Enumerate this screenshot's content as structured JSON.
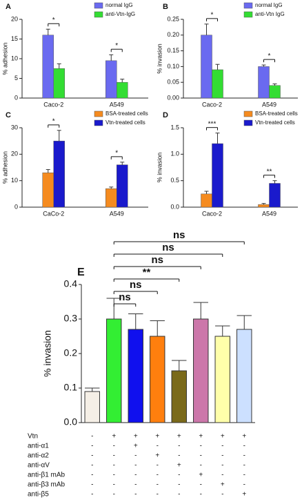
{
  "chart_data": [
    {
      "type": "bar",
      "panel": "A",
      "ylabel": "% adhesion",
      "categories": [
        "Caco-2",
        "A549"
      ],
      "series": [
        {
          "name": "normal IgG",
          "color": "#6a6af0",
          "values": [
            16,
            9.5
          ],
          "errors": [
            1.5,
            1.5
          ]
        },
        {
          "name": "anti-Vtn-IgG",
          "color": "#33dd33",
          "values": [
            7.5,
            4
          ],
          "errors": [
            1.2,
            0.8
          ]
        }
      ],
      "significance": [
        "*",
        "*"
      ],
      "ylim": [
        0,
        20
      ],
      "yticks": [
        0,
        5,
        10,
        15,
        20
      ],
      "legend": "upper right"
    },
    {
      "type": "bar",
      "panel": "B",
      "ylabel": "% invasion",
      "categories": [
        "Caco-2",
        "A549"
      ],
      "series": [
        {
          "name": "normal IgG",
          "color": "#6a6af0",
          "values": [
            0.2,
            0.1
          ],
          "errors": [
            0.035,
            0.005
          ]
        },
        {
          "name": "anti-Vtn IgG",
          "color": "#33dd33",
          "values": [
            0.09,
            0.04
          ],
          "errors": [
            0.017,
            0.005
          ]
        }
      ],
      "significance": [
        "*",
        "*"
      ],
      "ylim": [
        0,
        0.25
      ],
      "yticks": [
        {
          "value": 0,
          "label": "0.00"
        },
        {
          "value": 0.05,
          "label": "0.05"
        },
        {
          "value": 0.1,
          "label": "0.10"
        },
        {
          "value": 0.15,
          "label": "0.15"
        },
        {
          "value": 0.2,
          "label": "0.20"
        },
        {
          "value": 0.25,
          "label": "0.25"
        }
      ],
      "legend": "upper right"
    },
    {
      "type": "bar",
      "panel": "C",
      "ylabel": "% adhesion",
      "categories": [
        "CaCo-2",
        "A549"
      ],
      "series": [
        {
          "name": "BSA-treated cells",
          "color": "#f58b1f",
          "values": [
            13,
            7
          ],
          "errors": [
            1.2,
            0.6
          ]
        },
        {
          "name": "Vtn-treated cells",
          "color": "#1a1acc",
          "values": [
            25,
            16
          ],
          "errors": [
            4,
            1
          ]
        }
      ],
      "significance": [
        "*",
        "*"
      ],
      "ylim": [
        0,
        30
      ],
      "yticks": [
        0,
        10,
        20,
        30
      ],
      "legend": "upper right"
    },
    {
      "type": "bar",
      "panel": "D",
      "ylabel": "% invasion",
      "categories": [
        "Caco-2",
        "A549"
      ],
      "series": [
        {
          "name": "BSA-treated cells",
          "color": "#f58b1f",
          "values": [
            0.25,
            0.05
          ],
          "errors": [
            0.05,
            0.02
          ]
        },
        {
          "name": "Vtn-treated cells",
          "color": "#1a1acc",
          "values": [
            1.2,
            0.45
          ],
          "errors": [
            0.2,
            0.05
          ]
        }
      ],
      "significance": [
        "***",
        "**"
      ],
      "ylim": [
        0,
        1.5
      ],
      "yticks": [
        {
          "value": 0,
          "label": "0.0"
        },
        {
          "value": 0.5,
          "label": "0.5"
        },
        {
          "value": 1,
          "label": "1.0"
        },
        {
          "value": 1.5,
          "label": "1.5"
        }
      ],
      "legend": "upper right"
    },
    {
      "type": "bar",
      "panel": "E",
      "ylabel": "% invasion",
      "values": [
        0.09,
        0.3,
        0.27,
        0.25,
        0.15,
        0.3,
        0.25,
        0.27
      ],
      "errors": [
        0.01,
        0.06,
        0.045,
        0.045,
        0.03,
        0.048,
        0.03,
        0.04
      ],
      "colors": [
        "#f5efe6",
        "#33ee33",
        "#1010ee",
        "#ff7f0e",
        "#7a6a1a",
        "#cc77aa",
        "#ffffaa",
        "#cce0ff"
      ],
      "significance": [
        null,
        null,
        "ns",
        "ns",
        "**",
        "ns",
        "ns",
        "ns"
      ],
      "ylim": [
        0,
        0.4
      ],
      "yticks": [
        {
          "value": 0,
          "label": "0.0"
        },
        {
          "value": 0.1,
          "label": "0.1"
        },
        {
          "value": 0.2,
          "label": "0.2"
        },
        {
          "value": 0.3,
          "label": "0.3"
        },
        {
          "value": 0.4,
          "label": "0.4"
        }
      ],
      "treatments": [
        {
          "label": "Vtn",
          "signs": [
            "-",
            "+",
            "+",
            "+",
            "+",
            "+",
            "+",
            "+"
          ]
        },
        {
          "label": "anti-α1",
          "signs": [
            "-",
            "-",
            "+",
            "-",
            "-",
            "-",
            "-",
            "-"
          ]
        },
        {
          "label": "anti-α2",
          "signs": [
            "-",
            "-",
            "-",
            "+",
            "-",
            "-",
            "-",
            "-"
          ]
        },
        {
          "label": "anti-αV",
          "signs": [
            "-",
            "-",
            "-",
            "-",
            "+",
            "-",
            "-",
            "-"
          ]
        },
        {
          "label": "anti-β1 mAb",
          "signs": [
            "-",
            "-",
            "-",
            "-",
            "-",
            "+",
            "-",
            "-"
          ]
        },
        {
          "label": "anti-β3 mAb",
          "signs": [
            "-",
            "-",
            "-",
            "-",
            "-",
            "-",
            "+",
            "-"
          ]
        },
        {
          "label": "anti-β5",
          "signs": [
            "-",
            "-",
            "-",
            "-",
            "-",
            "-",
            "-",
            "+"
          ]
        }
      ]
    }
  ]
}
